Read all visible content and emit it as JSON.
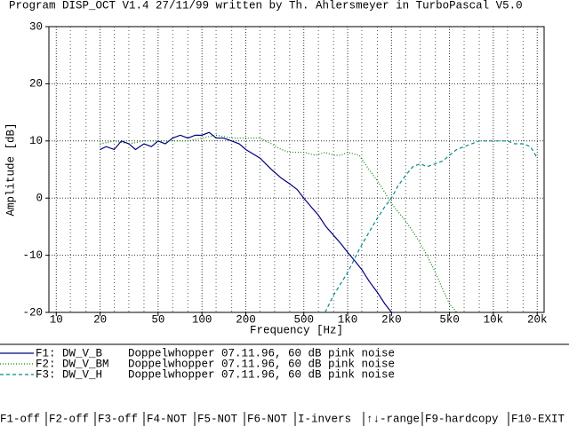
{
  "chart_data": {
    "type": "line",
    "title": "Program DISP_OCT V1.4 27/11/99 written by Th. Ahlersmeyer in TurboPascal V5.0",
    "x_label": "Frequency [Hz]",
    "y_label": "Amplitude [dB]",
    "xscale": "log",
    "xlim": [
      8.9,
      22300
    ],
    "ylim": [
      -20,
      30
    ],
    "yticks": [
      -20,
      -10,
      0,
      10,
      20,
      30
    ],
    "xticks": [
      10,
      20,
      50,
      100,
      200,
      500,
      {
        "value": 1000,
        "label": "1k0"
      },
      {
        "value": 2000,
        "label": "2k0"
      },
      {
        "value": 5000,
        "label": "5k0"
      },
      {
        "value": 10000,
        "label": "10k"
      },
      {
        "value": 20000,
        "label": "20k"
      }
    ],
    "minor_xgrid": [
      12.5,
      16,
      25,
      31.5,
      40,
      63,
      80,
      125,
      160,
      250,
      315,
      400,
      630,
      800,
      1250,
      1600,
      2500,
      3150,
      4000,
      6300,
      8000,
      12500,
      16000
    ],
    "grid": true,
    "series": [
      {
        "name": "F1: DW_V_B",
        "description": "Doppelwhopper 07.11.96, 60 dB pink noise",
        "color": "#000080",
        "dash": "solid",
        "x": [
          20,
          22,
          25,
          28,
          31.5,
          35,
          40,
          45,
          50,
          56,
          63,
          71,
          80,
          90,
          100,
          112,
          125,
          140,
          160,
          180,
          200,
          250,
          300,
          350,
          400,
          450,
          500,
          560,
          630,
          710,
          800,
          900,
          1000,
          1120,
          1250,
          1400,
          1600,
          1800,
          2000
        ],
        "values": [
          8.5,
          9,
          8.5,
          10,
          9.5,
          8.5,
          9.5,
          9,
          10,
          9.5,
          10.5,
          11,
          10.5,
          11,
          11,
          11.5,
          10.5,
          10.5,
          10,
          9.5,
          8.5,
          7,
          5,
          3.5,
          2.5,
          1.5,
          0,
          -1.5,
          -3,
          -5,
          -6.5,
          -8,
          -9.5,
          -11,
          -12.5,
          -14.5,
          -16.5,
          -18.5,
          -20
        ]
      },
      {
        "name": "F2: DW_V_BM",
        "description": "Doppelwhopper 07.11.96, 60 dB pink noise",
        "color": "#008000",
        "dash": "dotted",
        "x": [
          20,
          25,
          31.5,
          40,
          50,
          63,
          80,
          100,
          125,
          160,
          200,
          250,
          300,
          350,
          400,
          500,
          600,
          700,
          800,
          900,
          1000,
          1200,
          1400,
          1600,
          1800,
          2000,
          2500,
          3000,
          3500,
          4000,
          4500,
          5000,
          5600
        ],
        "values": [
          9.5,
          10,
          9.5,
          10,
          10,
          10,
          10,
          10.5,
          11,
          10.5,
          10.5,
          10.5,
          9.5,
          8.5,
          8,
          8,
          7.5,
          8,
          7.5,
          7.5,
          8,
          7.5,
          5,
          3,
          1,
          -1,
          -4,
          -7,
          -10,
          -13,
          -16,
          -18.5,
          -20
        ]
      },
      {
        "name": "F3: DW_V_H",
        "description": "Doppelwhopper 07.11.96, 60 dB pink noise",
        "color": "#008b8b",
        "dash": "dashed",
        "x": [
          700,
          800,
          1000,
          1200,
          1400,
          1600,
          1800,
          2000,
          2200,
          2500,
          2800,
          3150,
          3500,
          4000,
          4500,
          5000,
          5600,
          6300,
          7100,
          8000,
          9000,
          10000,
          11200,
          12500,
          14000,
          16000,
          18000,
          20000
        ],
        "values": [
          -20,
          -17,
          -13,
          -9,
          -6,
          -3.5,
          -1.5,
          0,
          2,
          4,
          5.5,
          6,
          5.5,
          6,
          6.5,
          7.5,
          8.5,
          9,
          9.5,
          10,
          10,
          10,
          10,
          10,
          9.5,
          9.5,
          9,
          7
        ]
      }
    ]
  },
  "function_keys": [
    "F1-off",
    "F2-off",
    "F3-off",
    "F4-NOT",
    "F5-NOT",
    "F6-NOT",
    "I-invers",
    "↑↓-range",
    "F9-hardcopy",
    "F10-EXIT"
  ]
}
